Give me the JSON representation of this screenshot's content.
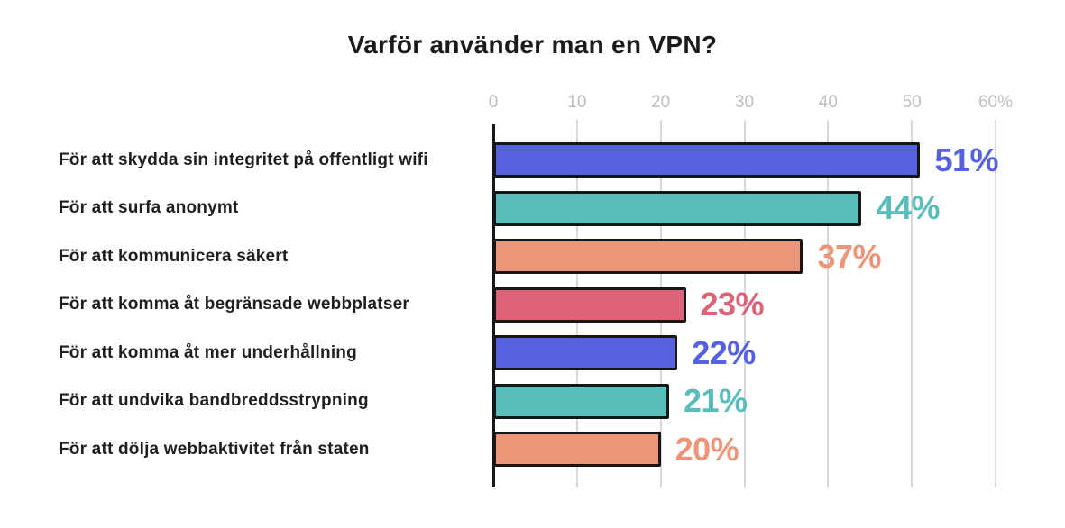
{
  "title": "Varför använder man en VPN?",
  "chart_data": {
    "type": "bar",
    "orientation": "horizontal",
    "title": "Varför använder man en VPN?",
    "categories": [
      "För att skydda sin integritet på offentligt wifi",
      "För att surfa anonymt",
      "För att kommunicera säkert",
      "För att komma åt begränsade webbplatser",
      "För att komma åt mer underhållning",
      "För att undvika bandbreddsstrypning",
      "För att dölja webbaktivitet från staten"
    ],
    "values": [
      51,
      44,
      37,
      23,
      22,
      21,
      20
    ],
    "value_labels": [
      "51%",
      "44%",
      "37%",
      "23%",
      "22%",
      "21%",
      "20%"
    ],
    "bar_colors": [
      "#5661E2",
      "#58BDBB",
      "#EC9579",
      "#DB6277",
      "#5661E2",
      "#58BDBB",
      "#EC9579"
    ],
    "x_ticks": {
      "labels": [
        "0",
        "10",
        "20",
        "30",
        "40",
        "50",
        "60%"
      ],
      "values": [
        0,
        10,
        20,
        30,
        40,
        50,
        60
      ]
    },
    "xlabel": "",
    "ylabel": "",
    "xlim": [
      0,
      60
    ],
    "grid": true,
    "legend": "none",
    "style_colors": {
      "bar_outline": "#161616",
      "gridline": "#D8D8D8",
      "axis_spine": "#161616",
      "tick_text": "#BEBEBE",
      "title_text": "#1B1B1D",
      "category_text": "#1F1F21",
      "background": "#FFFFFF"
    }
  }
}
